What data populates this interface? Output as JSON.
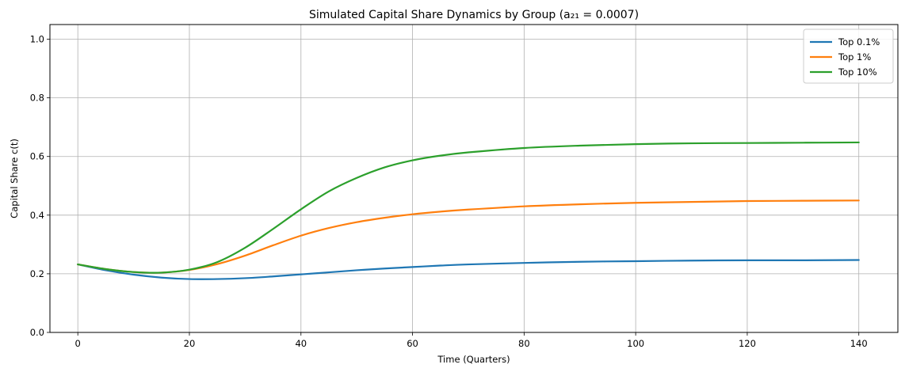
{
  "chart_data": {
    "type": "line",
    "title": "Simulated Capital Share Dynamics by Group (a₂₁ = 0.0007)",
    "xlabel": "Time (Quarters)",
    "ylabel": "Capital Share c(t)",
    "xlim": [
      -5,
      147
    ],
    "ylim": [
      0,
      1.05
    ],
    "xticks": [
      0,
      20,
      40,
      60,
      80,
      100,
      120,
      140
    ],
    "xtick_labels": [
      "0",
      "20",
      "40",
      "60",
      "80",
      "100",
      "120",
      "140"
    ],
    "yticks": [
      0,
      0.2,
      0.4,
      0.6,
      0.8,
      1.0
    ],
    "ytick_labels": [
      "0.0",
      "0.2",
      "0.4",
      "0.6",
      "0.8",
      "1.0"
    ],
    "grid": true,
    "legend_position": "top-right",
    "series": [
      {
        "name": "Top 0.1%",
        "color": "#1f77b4",
        "x": [
          0,
          5,
          10,
          15,
          20,
          25,
          30,
          35,
          40,
          45,
          50,
          55,
          60,
          65,
          70,
          80,
          90,
          100,
          110,
          120,
          130,
          140
        ],
        "y": [
          0.232,
          0.212,
          0.197,
          0.187,
          0.182,
          0.182,
          0.185,
          0.191,
          0.198,
          0.205,
          0.212,
          0.218,
          0.223,
          0.228,
          0.232,
          0.237,
          0.241,
          0.243,
          0.245,
          0.246,
          0.246,
          0.247
        ]
      },
      {
        "name": "Top 1%",
        "color": "#ff7f0e",
        "x": [
          0,
          5,
          10,
          15,
          20,
          25,
          30,
          35,
          40,
          45,
          50,
          55,
          60,
          65,
          70,
          80,
          90,
          100,
          110,
          120,
          130,
          140
        ],
        "y": [
          0.232,
          0.216,
          0.206,
          0.204,
          0.213,
          0.233,
          0.262,
          0.297,
          0.33,
          0.356,
          0.376,
          0.391,
          0.403,
          0.412,
          0.419,
          0.43,
          0.437,
          0.442,
          0.445,
          0.448,
          0.449,
          0.45
        ]
      },
      {
        "name": "Top 10%",
        "color": "#2ca02c",
        "x": [
          0,
          5,
          10,
          15,
          20,
          25,
          30,
          35,
          40,
          45,
          50,
          55,
          60,
          65,
          70,
          80,
          90,
          100,
          110,
          120,
          130,
          140
        ],
        "y": [
          0.232,
          0.216,
          0.206,
          0.204,
          0.214,
          0.24,
          0.289,
          0.353,
          0.42,
          0.481,
          0.527,
          0.563,
          0.587,
          0.603,
          0.614,
          0.629,
          0.637,
          0.642,
          0.645,
          0.646,
          0.647,
          0.648
        ]
      }
    ]
  }
}
